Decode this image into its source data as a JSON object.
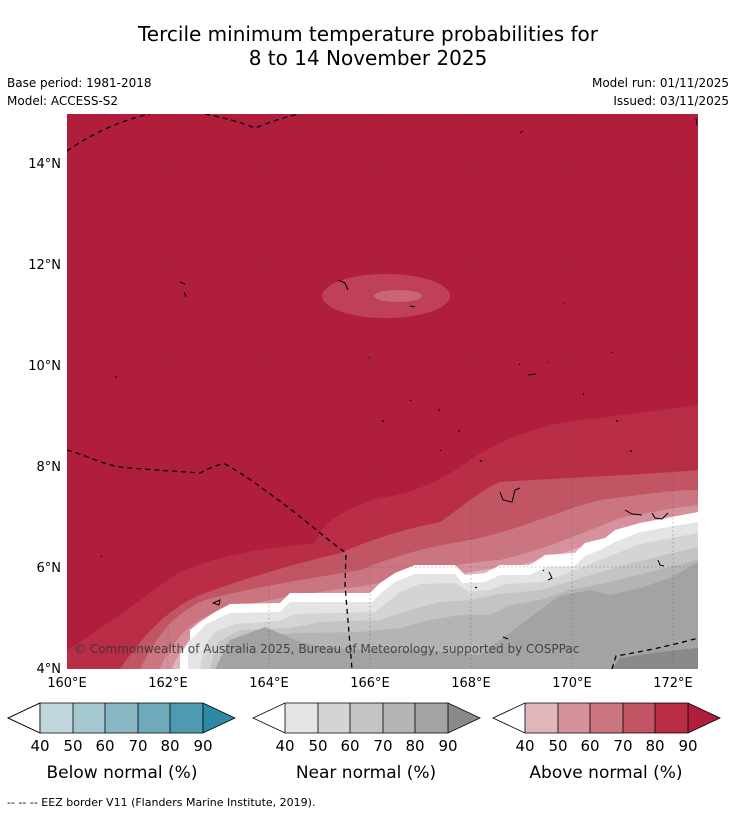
{
  "title": {
    "line1": "Tercile minimum temperature probabilities for",
    "line2": "8 to 14 November 2025"
  },
  "meta": {
    "base_period": "Base period: 1981-2018",
    "model": "Model: ACCESS-S2",
    "model_run": "Model run: 01/11/2025",
    "issued": "Issued: 03/11/2025"
  },
  "map": {
    "lat_labels": [
      "14°N",
      "12°N",
      "10°N",
      "8°N",
      "6°N",
      "4°N"
    ],
    "lon_labels": [
      "160°E",
      "162°E",
      "164°E",
      "166°E",
      "168°E",
      "170°E",
      "172°E"
    ],
    "copyright": "© Commonwealth of Australia 2025, Bureau of Meteorology, supported by COSPPac"
  },
  "legend": {
    "below": {
      "title": "Below normal (%)",
      "ticks": [
        "40",
        "50",
        "60",
        "70",
        "80",
        "90"
      ],
      "colors": [
        "#c0d5dc",
        "#a5c7cf",
        "#89b8c4",
        "#6eaabb",
        "#4e9ab0",
        "#2e8aa4"
      ]
    },
    "near": {
      "title": "Near normal (%)",
      "ticks": [
        "40",
        "50",
        "60",
        "70",
        "80",
        "90"
      ],
      "colors": [
        "#e4e4e4",
        "#d4d4d4",
        "#c4c4c4",
        "#b4b4b4",
        "#a3a3a3",
        "#8a8a8a"
      ]
    },
    "above": {
      "title": "Above normal (%)",
      "ticks": [
        "40",
        "50",
        "60",
        "70",
        "80",
        "90"
      ],
      "colors": [
        "#e2b5bb",
        "#d6929c",
        "#cb7580",
        "#c15564",
        "#b92e46",
        "#b01e3c"
      ]
    }
  },
  "footer": {
    "eez_note": "--  --  -- EEZ border V11 (Flanders Marine Institute, 2019)."
  }
}
